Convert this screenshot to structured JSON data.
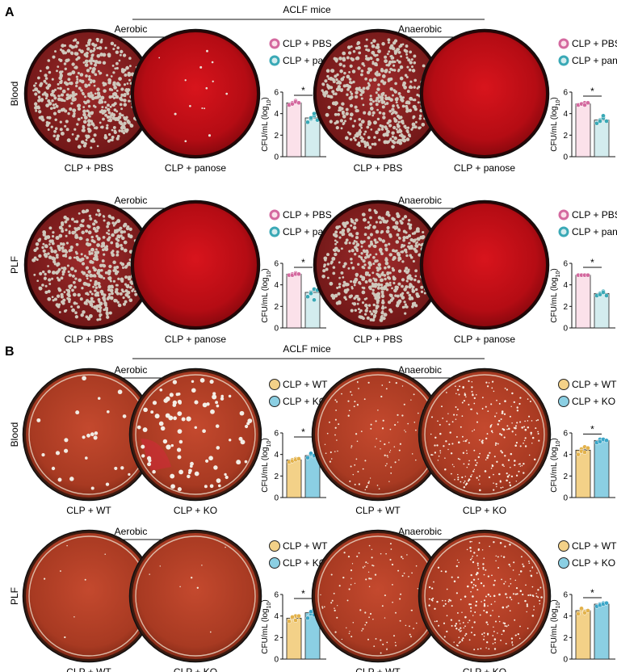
{
  "panels": [
    {
      "letter": "A",
      "header": "ACLF mice",
      "colors": {
        "c1": "#d4699f",
        "c1_fill": "#fbe1ea",
        "c2": "#3aa9b6",
        "c2_fill": "#d3ecee"
      },
      "rows": [
        {
          "row_label": "Blood",
          "blocks": [
            {
              "condition": "Aerobic",
              "plate_labels": [
                "CLP + PBS",
                "CLP + panose"
              ],
              "plate_style": [
                "A-heavy",
                "A-sparse"
              ]
            },
            {
              "condition": "Anaerobic",
              "plate_labels": [
                "CLP + PBS",
                "CLP + panose"
              ],
              "plate_style": [
                "A-heavy",
                "A-clean"
              ]
            }
          ]
        },
        {
          "row_label": "PLF",
          "blocks": [
            {
              "condition": "Aerobic",
              "plate_labels": [
                "CLP + PBS",
                "CLP + panose"
              ],
              "plate_style": [
                "A-heavy",
                "A-clean"
              ]
            },
            {
              "condition": "Anaerobic",
              "plate_labels": [
                "CLP + PBS",
                "CLP + panose"
              ],
              "plate_style": [
                "A-heavy",
                "A-clean"
              ]
            }
          ]
        }
      ]
    },
    {
      "letter": "B",
      "header": "ACLF mice",
      "colors": {
        "c1": "#e3b24b",
        "c1_fill": "#f3d188",
        "c2": "#3aa6c8",
        "c2_fill": "#8bcfe3"
      },
      "rows": [
        {
          "row_label": "Blood",
          "blocks": [
            {
              "condition": "Aerobic",
              "plate_labels": [
                "CLP + WT",
                "CLP + KO"
              ],
              "plate_style": [
                "B-few",
                "B-many"
              ]
            },
            {
              "condition": "Anaerobic",
              "plate_labels": [
                "CLP + WT",
                "CLP + KO"
              ],
              "plate_style": [
                "B-speck",
                "B-speck2"
              ]
            }
          ]
        },
        {
          "row_label": "PLF",
          "blocks": [
            {
              "condition": "Aerobic",
              "plate_labels": [
                "CLP + WT",
                "CLP + KO"
              ],
              "plate_style": [
                "B-plain",
                "B-plain"
              ]
            },
            {
              "condition": "Anaerobic",
              "plate_labels": [
                "CLP + WT",
                "CLP + KO"
              ],
              "plate_style": [
                "B-speck",
                "B-speck2"
              ]
            }
          ]
        }
      ]
    }
  ],
  "chart_data": [
    {
      "type": "bar",
      "panel": "A",
      "sample": "Blood",
      "condition": "Aerobic",
      "categories": [
        "CLP + PBS",
        "CLP + panose"
      ],
      "values": [
        5.0,
        3.6
      ],
      "points": [
        [
          4.8,
          5.0,
          5.2,
          4.9,
          5.1,
          5.0
        ],
        [
          3.2,
          3.5,
          3.8,
          3.6,
          4.0,
          3.4
        ]
      ],
      "ylabel": "CFU/mL (log10)",
      "ylim": [
        0,
        6
      ],
      "yticks": [
        0,
        2,
        4,
        6
      ],
      "significance": "*"
    },
    {
      "type": "bar",
      "panel": "A",
      "sample": "Blood",
      "condition": "Anaerobic",
      "categories": [
        "CLP + PBS",
        "CLP + panose"
      ],
      "values": [
        4.9,
        3.4
      ],
      "points": [
        [
          4.8,
          4.9,
          5.0,
          4.9,
          4.8,
          5.0
        ],
        [
          3.1,
          3.4,
          3.6,
          3.3,
          3.8,
          3.3
        ]
      ],
      "ylabel": "CFU/mL (log10)",
      "ylim": [
        0,
        6
      ],
      "yticks": [
        0,
        2,
        4,
        6
      ],
      "significance": "*"
    },
    {
      "type": "bar",
      "panel": "A",
      "sample": "PLF",
      "condition": "Aerobic",
      "categories": [
        "CLP + PBS",
        "CLP + panose"
      ],
      "values": [
        5.0,
        3.3
      ],
      "points": [
        [
          4.9,
          5.0,
          5.1,
          4.9,
          5.0,
          5.0
        ],
        [
          2.9,
          3.3,
          3.6,
          3.2,
          2.6,
          3.5
        ]
      ],
      "ylabel": "CFU/mL (log10)",
      "ylim": [
        0,
        6
      ],
      "yticks": [
        0,
        2,
        4,
        6
      ],
      "significance": "*"
    },
    {
      "type": "bar",
      "panel": "A",
      "sample": "PLF",
      "condition": "Anaerobic",
      "categories": [
        "CLP + PBS",
        "CLP + panose"
      ],
      "values": [
        4.9,
        3.2
      ],
      "points": [
        [
          4.9,
          4.9,
          4.9,
          4.9,
          4.9,
          4.9
        ],
        [
          3.0,
          3.2,
          3.4,
          3.1,
          3.3,
          3.0
        ]
      ],
      "ylabel": "CFU/mL (log10)",
      "ylim": [
        0,
        6
      ],
      "yticks": [
        0,
        2,
        4,
        6
      ],
      "significance": "*"
    },
    {
      "type": "bar",
      "panel": "B",
      "sample": "Blood",
      "condition": "Aerobic",
      "categories": [
        "CLP + WT",
        "CLP + KO"
      ],
      "values": [
        3.5,
        3.9
      ],
      "points": [
        [
          3.3,
          3.5,
          3.6,
          3.4,
          3.5,
          3.6
        ],
        [
          3.7,
          4.0,
          3.8,
          4.1,
          3.9,
          3.8
        ]
      ],
      "ylabel": "CFU/mL (log10)",
      "ylim": [
        0,
        6
      ],
      "yticks": [
        0,
        2,
        4,
        6
      ],
      "significance": "*"
    },
    {
      "type": "bar",
      "panel": "B",
      "sample": "Blood",
      "condition": "Anaerobic",
      "categories": [
        "CLP + WT",
        "CLP + KO"
      ],
      "values": [
        4.4,
        5.3
      ],
      "points": [
        [
          4.0,
          4.5,
          4.7,
          4.3,
          4.2,
          4.6
        ],
        [
          5.1,
          5.4,
          5.3,
          5.2,
          5.4,
          5.3
        ]
      ],
      "ylabel": "CFU/mL (log10)",
      "ylim": [
        0,
        6
      ],
      "yticks": [
        0,
        2,
        4,
        6
      ],
      "significance": "*"
    },
    {
      "type": "bar",
      "panel": "B",
      "sample": "PLF",
      "condition": "Aerobic",
      "categories": [
        "CLP + WT",
        "CLP + KO"
      ],
      "values": [
        3.8,
        4.3
      ],
      "points": [
        [
          3.5,
          3.8,
          4.0,
          3.9,
          3.6,
          4.0
        ],
        [
          3.8,
          4.2,
          4.6,
          4.4,
          4.1,
          4.5
        ]
      ],
      "ylabel": "CFU/mL (log10)",
      "ylim": [
        0,
        6
      ],
      "yticks": [
        0,
        2,
        4,
        6
      ],
      "significance": "*"
    },
    {
      "type": "bar",
      "panel": "B",
      "sample": "PLF",
      "condition": "Anaerobic",
      "categories": [
        "CLP + WT",
        "CLP + KO"
      ],
      "values": [
        4.5,
        5.1
      ],
      "points": [
        [
          4.2,
          4.6,
          4.4,
          4.7,
          4.3,
          4.5
        ],
        [
          4.9,
          5.1,
          5.2,
          5.0,
          5.1,
          5.2
        ]
      ],
      "ylabel": "CFU/mL (log10)",
      "ylim": [
        0,
        6
      ],
      "yticks": [
        0,
        2,
        4,
        6
      ],
      "significance": "*"
    }
  ]
}
